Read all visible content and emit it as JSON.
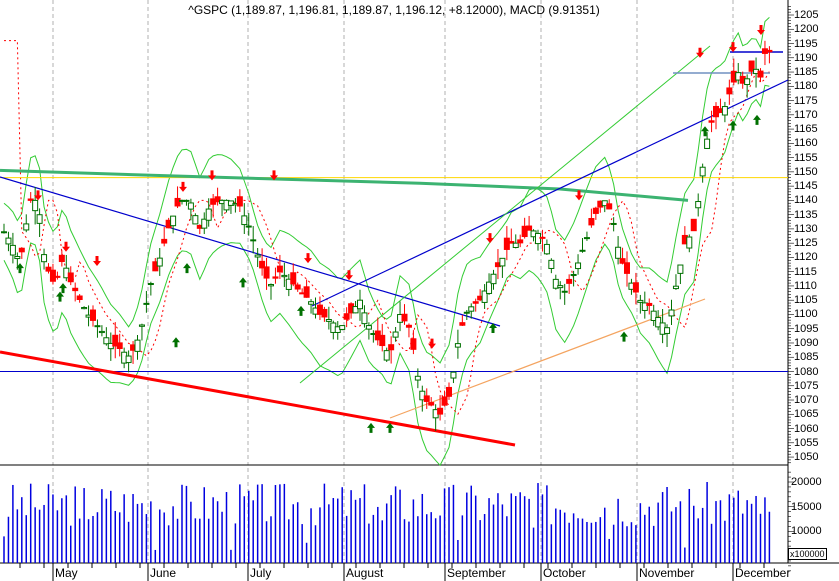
{
  "header": {
    "title": "^GSPC (1,189.87, 1,196.81, 1,189.87, 1,196.12, +8.12000), MACD (9.91351)"
  },
  "price_axis": {
    "labels": [
      "1205",
      "1200",
      "1195",
      "1190",
      "1185",
      "1180",
      "1175",
      "1170",
      "1165",
      "1160",
      "1155",
      "1150",
      "1145",
      "1140",
      "1135",
      "1130",
      "1125",
      "1120",
      "1115",
      "1110",
      "1105",
      "1100",
      "1095",
      "1090",
      "1085",
      "1080",
      "1075",
      "1070",
      "1065",
      "1060",
      "1055",
      "1050"
    ]
  },
  "volume_axis": {
    "labels": [
      "20000",
      "15000",
      "10000",
      "5000"
    ],
    "unit": "x100000"
  },
  "months": [
    "May",
    "June",
    "July",
    "August",
    "September",
    "October",
    "November",
    "December"
  ],
  "colors": {
    "up": "#007000",
    "down": "#ff0000",
    "volume": "#0000e0",
    "trend_blue": "#0000cc",
    "trend_green": "#3cb371",
    "trend_yellow": "#ffd700",
    "trend_red": "#ff0000",
    "trend_orange": "#f4a460",
    "bollinger": "#33cc33",
    "sar": "#ff0000",
    "grid": "#b0b0b0"
  },
  "chart_data": {
    "type": "candlestick",
    "title": "^GSPC (1,189.87, 1,196.81, 1,189.87, 1,196.12, +8.12000), MACD (9.91351)",
    "xlabel": "",
    "ylabel": "",
    "ylim": [
      1048,
      1208
    ],
    "volume_ylim": [
      0,
      22500
    ],
    "volume_unit": "x100000",
    "x_ticks": [
      "May",
      "June",
      "July",
      "August",
      "September",
      "October",
      "November",
      "December"
    ],
    "last_bar": {
      "open": 1189.87,
      "high": 1196.81,
      "low": 1189.87,
      "close": 1196.12,
      "change": 8.12
    },
    "macd": 9.91351,
    "approx_close_path": [
      {
        "month": "April(end)",
        "close": 1135
      },
      {
        "month": "May(start)",
        "close": 1120
      },
      {
        "month": "May(mid)",
        "close": 1090
      },
      {
        "month": "May(end)",
        "close": 1120
      },
      {
        "month": "June(start)",
        "close": 1127
      },
      {
        "month": "June(mid)",
        "close": 1135
      },
      {
        "month": "June(end)",
        "close": 1140
      },
      {
        "month": "July(start)",
        "close": 1130
      },
      {
        "month": "July(mid)",
        "close": 1100
      },
      {
        "month": "July(end)",
        "close": 1100
      },
      {
        "month": "August(start)",
        "close": 1075
      },
      {
        "month": "August(low)",
        "close": 1062
      },
      {
        "month": "August(end)",
        "close": 1098
      },
      {
        "month": "September(mid)",
        "close": 1128
      },
      {
        "month": "September(end)",
        "close": 1105
      },
      {
        "month": "October(start)",
        "close": 1140
      },
      {
        "month": "October(mid)",
        "close": 1100
      },
      {
        "month": "October(end)",
        "close": 1095
      },
      {
        "month": "November(start)",
        "close": 1145
      },
      {
        "month": "November(mid)",
        "close": 1185
      },
      {
        "month": "November(end)",
        "close": 1178
      },
      {
        "month": "December",
        "close": 1196.12
      }
    ],
    "trendlines": [
      {
        "name": "horizontal support",
        "color": "blue",
        "price": 1080
      },
      {
        "name": "horizontal resistance",
        "color": "yellow",
        "price": 1148
      },
      {
        "name": "descending channel top",
        "color": "green",
        "from_price": 1150,
        "to_price": 1139
      },
      {
        "name": "descending support",
        "color": "red",
        "from_price": 1084,
        "to_price": 1054
      },
      {
        "name": "rising support",
        "color": "blue",
        "from_price": 1102,
        "to_price": 1182
      },
      {
        "name": "rising orange",
        "color": "orange",
        "from_price": 1062,
        "to_price": 1105
      },
      {
        "name": "descending blue",
        "color": "blue",
        "from_price": 1148,
        "to_price": 1096
      }
    ]
  }
}
